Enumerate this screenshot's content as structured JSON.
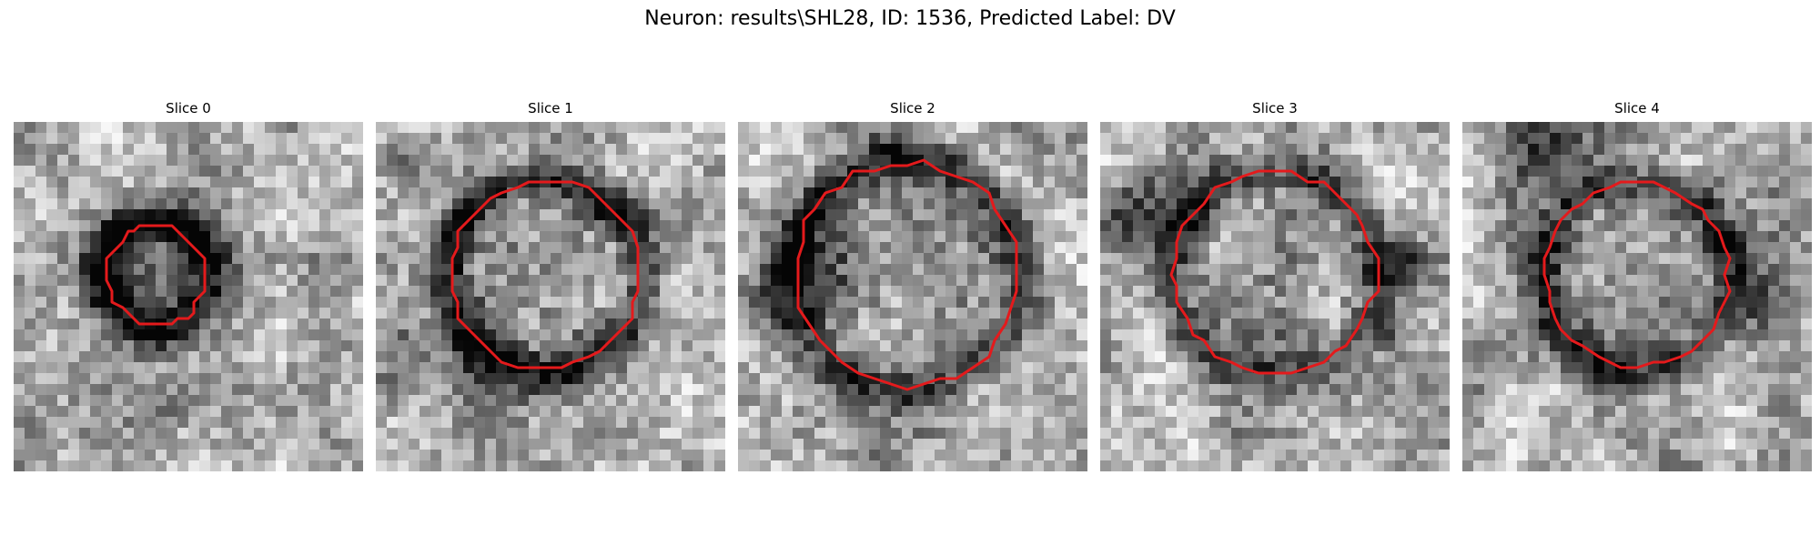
{
  "figure": {
    "title": "Neuron: results\\SHL28, ID: 1536, Predicted Label: DV"
  },
  "panels": [
    {
      "title": "Slice 0"
    },
    {
      "title": "Slice 1"
    },
    {
      "title": "Slice 2"
    },
    {
      "title": "Slice 3"
    },
    {
      "title": "Slice 4"
    }
  ],
  "colors": {
    "contour": "#e41a1c",
    "colormap": "gray"
  }
}
